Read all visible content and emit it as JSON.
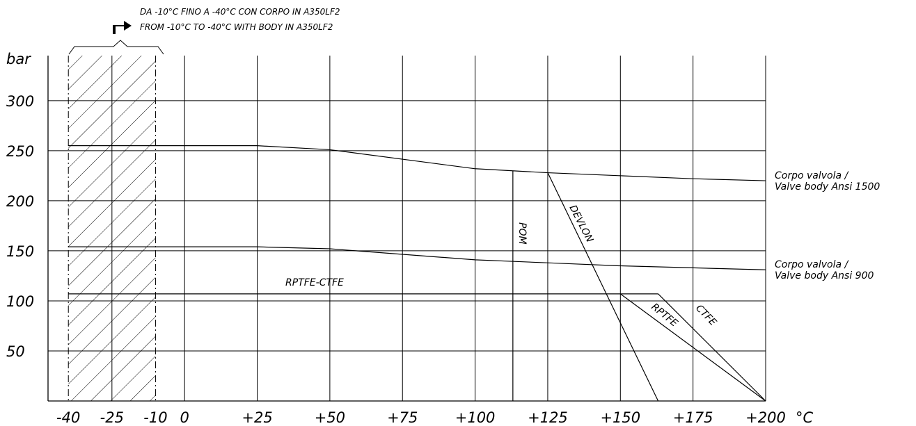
{
  "note": {
    "line1": "DA -10°C FINO A -40°C CON CORPO IN A350LF2",
    "line2": "FROM -10°C TO -40°C WITH BODY IN A350LF2"
  },
  "chart_data": {
    "type": "line",
    "x_unit_label": "°C",
    "y_unit_label": "bar",
    "x_ticks": [
      {
        "value": -40,
        "label": "-40"
      },
      {
        "value": -25,
        "label": "-25"
      },
      {
        "value": -10,
        "label": "-10"
      },
      {
        "value": 0,
        "label": "0"
      },
      {
        "value": 25,
        "label": "+25"
      },
      {
        "value": 50,
        "label": "+50"
      },
      {
        "value": 75,
        "label": "+75"
      },
      {
        "value": 100,
        "label": "+100"
      },
      {
        "value": 125,
        "label": "+125"
      },
      {
        "value": 150,
        "label": "+150"
      },
      {
        "value": 175,
        "label": "+175"
      },
      {
        "value": 200,
        "label": "+200"
      }
    ],
    "y_ticks": [
      {
        "value": 50,
        "label": "50"
      },
      {
        "value": 100,
        "label": "100"
      },
      {
        "value": 150,
        "label": "150"
      },
      {
        "value": 200,
        "label": "200"
      },
      {
        "value": 250,
        "label": "250"
      },
      {
        "value": 300,
        "label": "300"
      }
    ],
    "xlim": [
      -47,
      200
    ],
    "ylim": [
      0,
      345
    ],
    "grid": true,
    "hatched_range": [
      -40,
      -10
    ],
    "series": [
      {
        "name": "Corpo valvola / Valve body Ansi 1500",
        "label_line1": "Corpo valvola /",
        "label_line2": "Valve body Ansi 1500",
        "x": [
          -40,
          25,
          50,
          100,
          125,
          150,
          175,
          200
        ],
        "y": [
          255,
          255,
          251,
          232,
          228,
          225,
          222,
          220
        ]
      },
      {
        "name": "Corpo valvola / Valve body Ansi 900",
        "label_line1": "Corpo valvola /",
        "label_line2": "Valve body Ansi 900",
        "x": [
          -40,
          25,
          50,
          100,
          125,
          150,
          175,
          200
        ],
        "y": [
          154,
          154,
          152,
          141,
          138,
          135,
          133,
          131
        ]
      },
      {
        "name": "RPTFE-CTFE",
        "x": [
          -40,
          163
        ],
        "y": [
          107,
          107
        ]
      },
      {
        "name": "CTFE",
        "x": [
          163,
          200
        ],
        "y": [
          107,
          0
        ]
      },
      {
        "name": "RPTFE",
        "x": [
          150,
          200
        ],
        "y": [
          107,
          0
        ]
      },
      {
        "name": "DEVLON",
        "x": [
          125,
          163
        ],
        "y": [
          228,
          0
        ]
      },
      {
        "name": "POM",
        "x": [
          113,
          113
        ],
        "y": [
          0,
          230
        ]
      }
    ]
  }
}
